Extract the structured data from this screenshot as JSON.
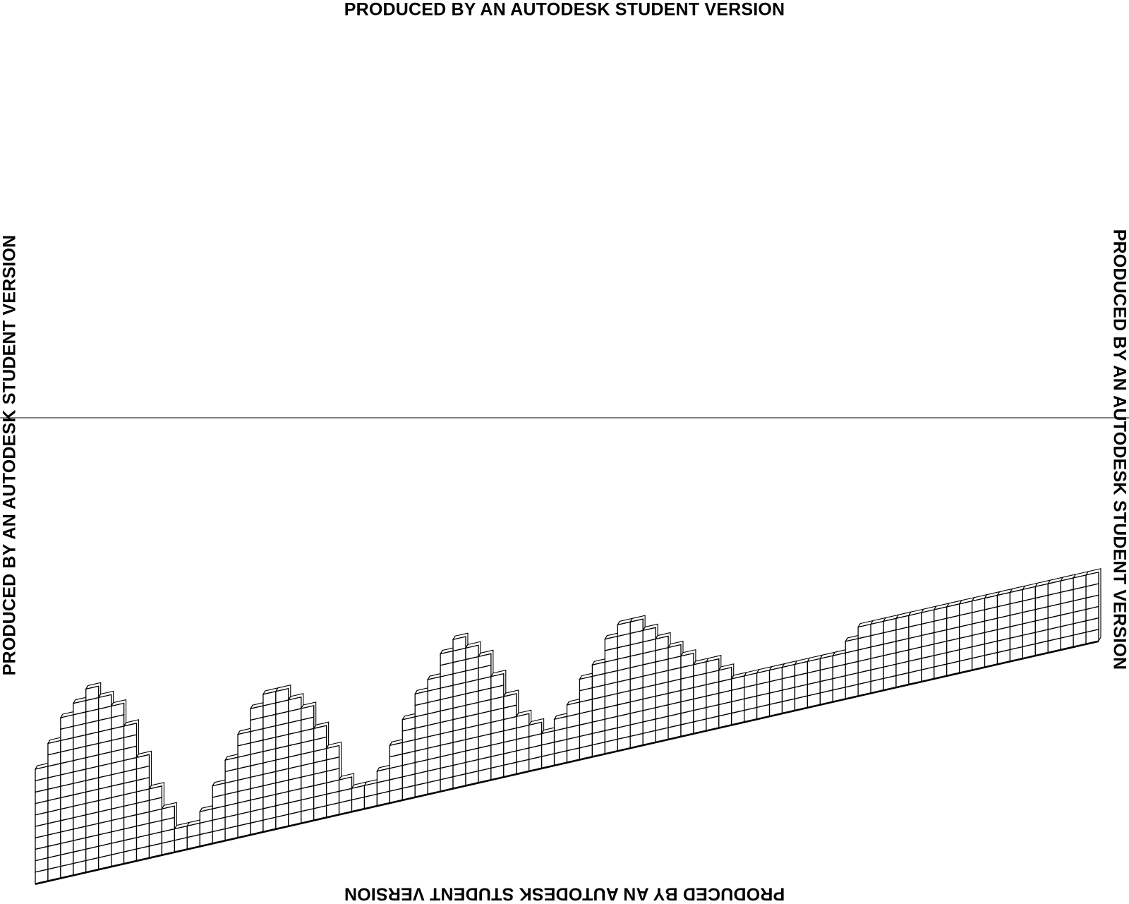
{
  "watermarks": {
    "top": "PRODUCED BY AN AUTODESK STUDENT VERSION",
    "bottom": "PRODUCED BY AN AUTODESK STUDENT VERSION",
    "left": "PRODUCED BY AN AUTODESK STUDENT VERSION",
    "right": "PRODUCED BY AN AUTODESK STUDENT VERSION"
  },
  "colors": {
    "ink": "#000000",
    "background": "#ffffff",
    "panel_fill": "#ffffff"
  },
  "drawing": {
    "type": "3d-facade-panel-columns",
    "column_count": 84,
    "column_row_counts": [
      10,
      12,
      14,
      15,
      16,
      15,
      14,
      12,
      9,
      6,
      4,
      2,
      2,
      3,
      5,
      7,
      9,
      11,
      12,
      12,
      11,
      10,
      8,
      6,
      3,
      2,
      2,
      3,
      5,
      7,
      9,
      10,
      12,
      13,
      12,
      11,
      9,
      7,
      5,
      4,
      3,
      4,
      5,
      7,
      8,
      10,
      11,
      11,
      10,
      9,
      8,
      7,
      6,
      6,
      5,
      4,
      4,
      4,
      4,
      4,
      4,
      4,
      4,
      4,
      5,
      6,
      6,
      6,
      6,
      6,
      6,
      6,
      6,
      6,
      6,
      6,
      6,
      6,
      6,
      6,
      6,
      6,
      6,
      6
    ]
  }
}
